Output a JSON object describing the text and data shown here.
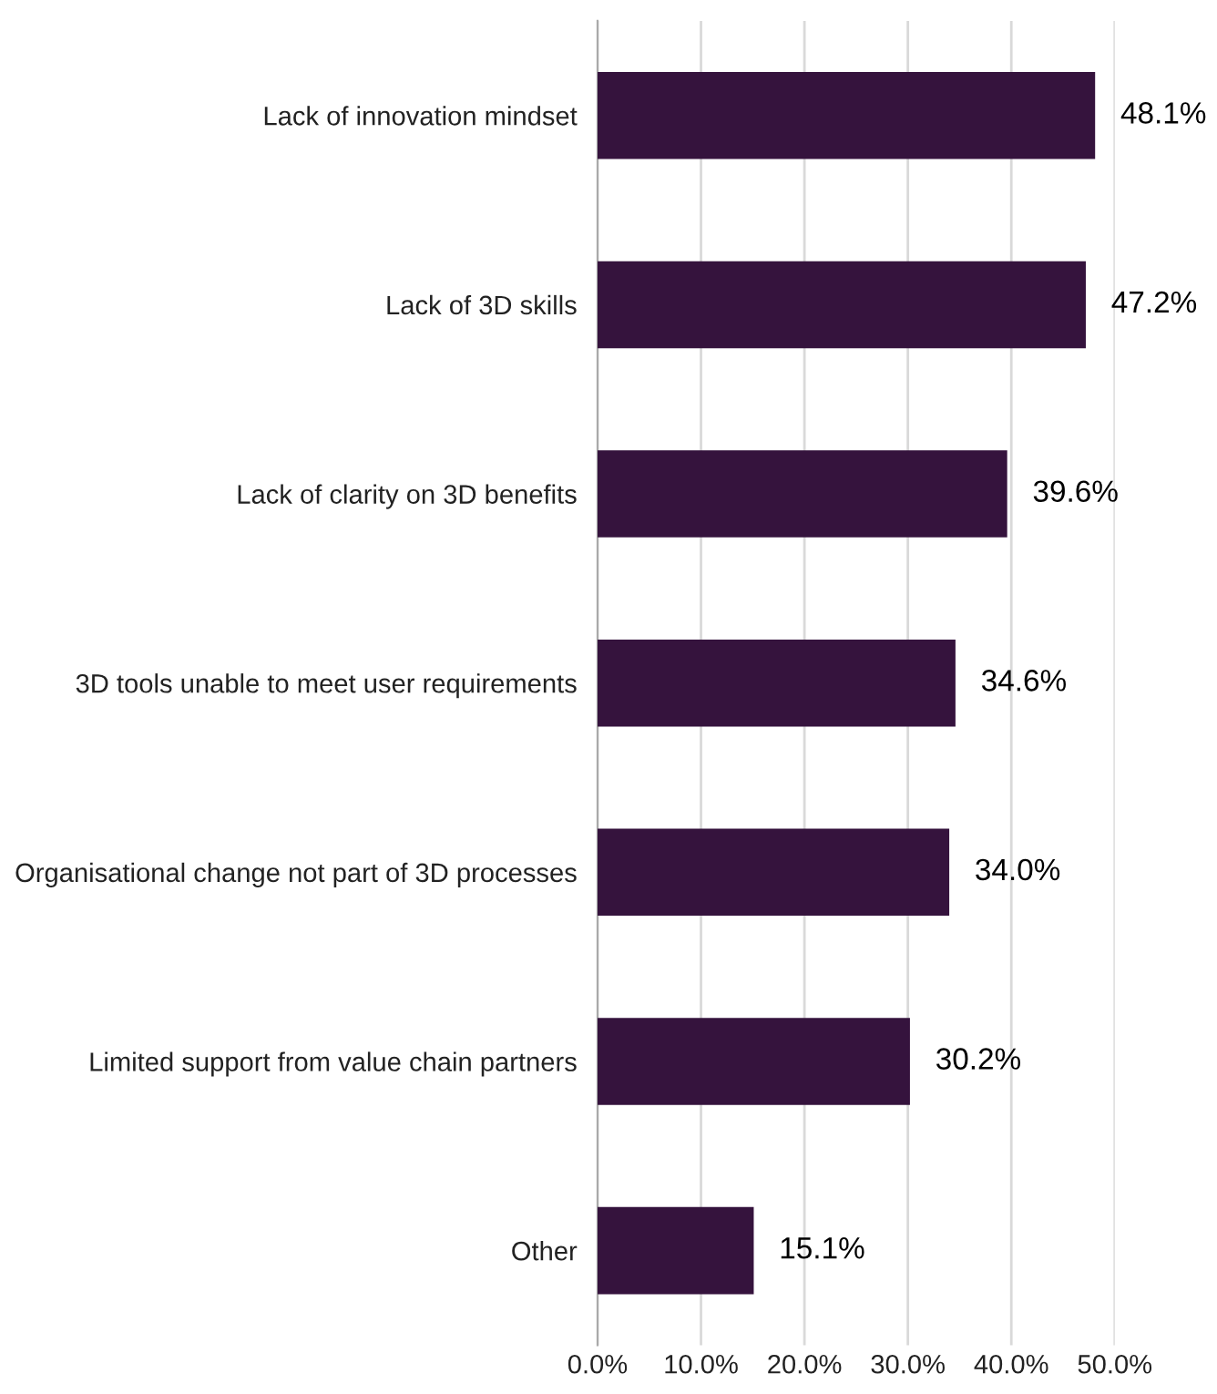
{
  "chart_data": {
    "type": "bar",
    "orientation": "horizontal",
    "categories": [
      "Lack of innovation mindset",
      "Lack of 3D skills",
      "Lack of clarity on 3D benefits",
      "3D tools unable to meet user requirements",
      "Organisational change not part of 3D processes",
      "Limited support from value chain partners",
      "Other"
    ],
    "values": [
      48.1,
      47.2,
      39.6,
      34.6,
      34.0,
      30.2,
      15.1
    ],
    "value_labels": [
      "48.1%",
      "47.2%",
      "39.6%",
      "34.6%",
      "34.0%",
      "30.2%",
      "15.1%"
    ],
    "color": "#35133d",
    "xlim": [
      0,
      50
    ],
    "xticks": [
      {
        "value": 0,
        "label": "0.0%"
      },
      {
        "value": 10,
        "label": "10.0%"
      },
      {
        "value": 20,
        "label": "20.0%"
      },
      {
        "value": 30,
        "label": "30.0%"
      },
      {
        "value": 40,
        "label": "40.0%"
      },
      {
        "value": 50,
        "label": "50.0%"
      }
    ],
    "grid": "x",
    "legend": false
  }
}
